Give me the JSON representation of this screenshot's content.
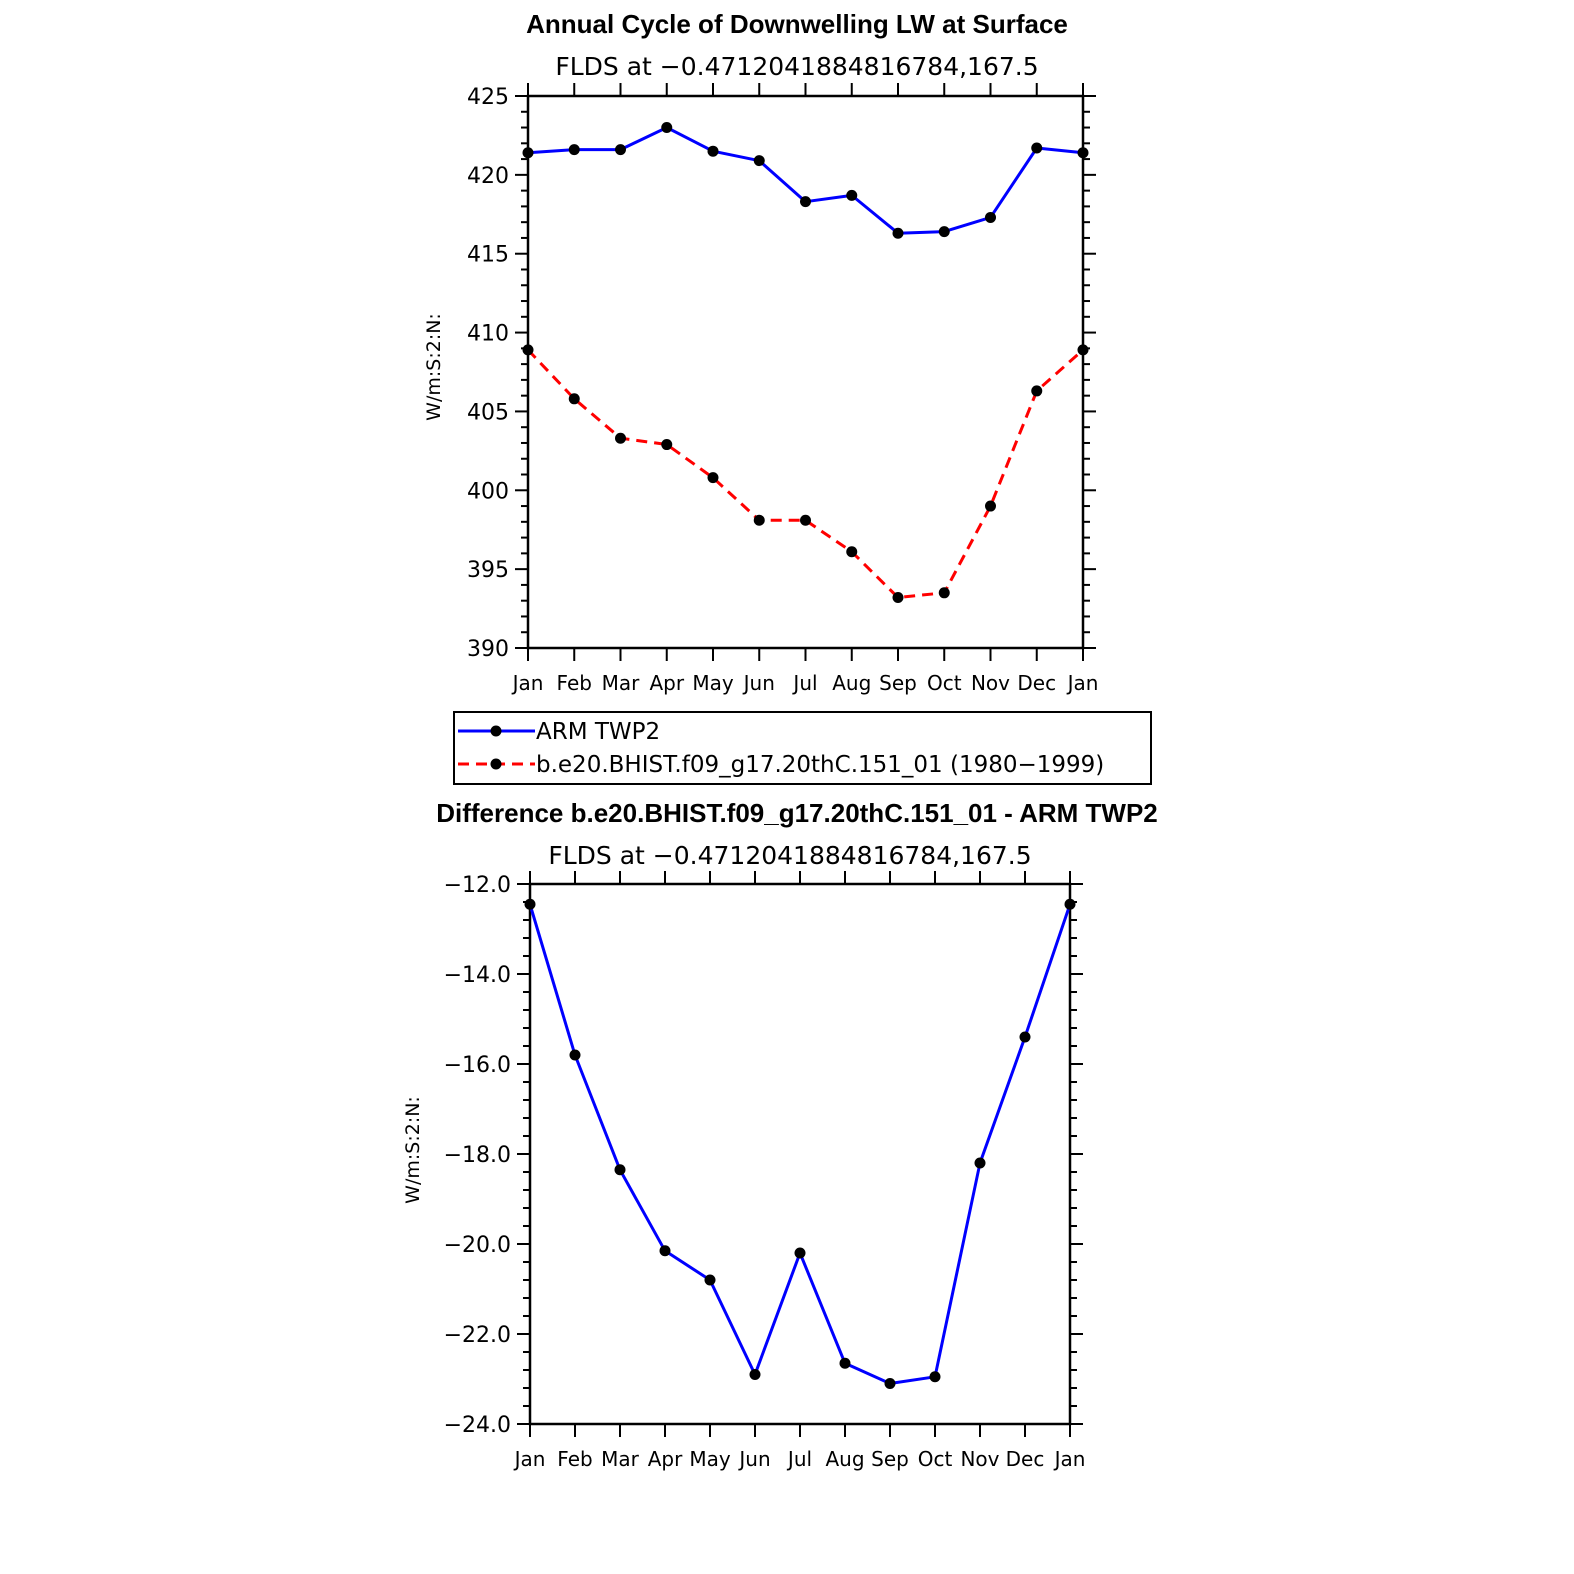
{
  "chart_data": [
    {
      "type": "line",
      "title": "Annual Cycle of Downwelling LW at Surface",
      "subtitle": "FLDS at −0.4712041884816784,167.5",
      "xlabel": "",
      "ylabel": "W/m:S:2:N:",
      "categories": [
        "Jan",
        "Feb",
        "Mar",
        "Apr",
        "May",
        "Jun",
        "Jul",
        "Aug",
        "Sep",
        "Oct",
        "Nov",
        "Dec",
        "Jan"
      ],
      "ylim": [
        390,
        425
      ],
      "yticks": [
        390,
        395,
        400,
        405,
        410,
        415,
        420,
        425
      ],
      "ytick_labels": [
        "390",
        "395",
        "400",
        "405",
        "410",
        "415",
        "420",
        "425"
      ],
      "legend_position": "below",
      "series": [
        {
          "name": "ARM TWP2",
          "color": "#0000ff",
          "dash": "solid",
          "values": [
            421.4,
            421.6,
            421.6,
            423.0,
            421.5,
            420.9,
            418.3,
            418.7,
            416.3,
            416.4,
            417.3,
            421.7,
            421.4
          ]
        },
        {
          "name": "b.e20.BHIST.f09_g17.20thC.151_01 (1980−1999)",
          "color": "#ff0000",
          "dash": "dashed",
          "values": [
            408.9,
            405.8,
            403.3,
            402.9,
            400.8,
            398.1,
            398.1,
            396.1,
            393.2,
            393.5,
            399.0,
            406.3,
            408.9
          ]
        }
      ]
    },
    {
      "type": "line",
      "title": "Difference b.e20.BHIST.f09_g17.20thC.151_01 - ARM TWP2",
      "subtitle": "FLDS at −0.4712041884816784,167.5",
      "xlabel": "",
      "ylabel": "W/m:S:2:N:",
      "categories": [
        "Jan",
        "Feb",
        "Mar",
        "Apr",
        "May",
        "Jun",
        "Jul",
        "Aug",
        "Sep",
        "Oct",
        "Nov",
        "Dec",
        "Jan"
      ],
      "ylim": [
        -24,
        -12
      ],
      "yticks": [
        -24,
        -22,
        -20,
        -18,
        -16,
        -14,
        -12
      ],
      "ytick_labels": [
        "−24.0",
        "−22.0",
        "−20.0",
        "−18.0",
        "−16.0",
        "−14.0",
        "−12.0"
      ],
      "series": [
        {
          "color": "#0000ff",
          "dash": "solid",
          "values": [
            -12.45,
            -15.8,
            -18.35,
            -20.15,
            -20.8,
            -22.9,
            -20.2,
            -22.65,
            -23.1,
            -22.95,
            -18.2,
            -15.4,
            -12.45
          ]
        }
      ]
    }
  ]
}
